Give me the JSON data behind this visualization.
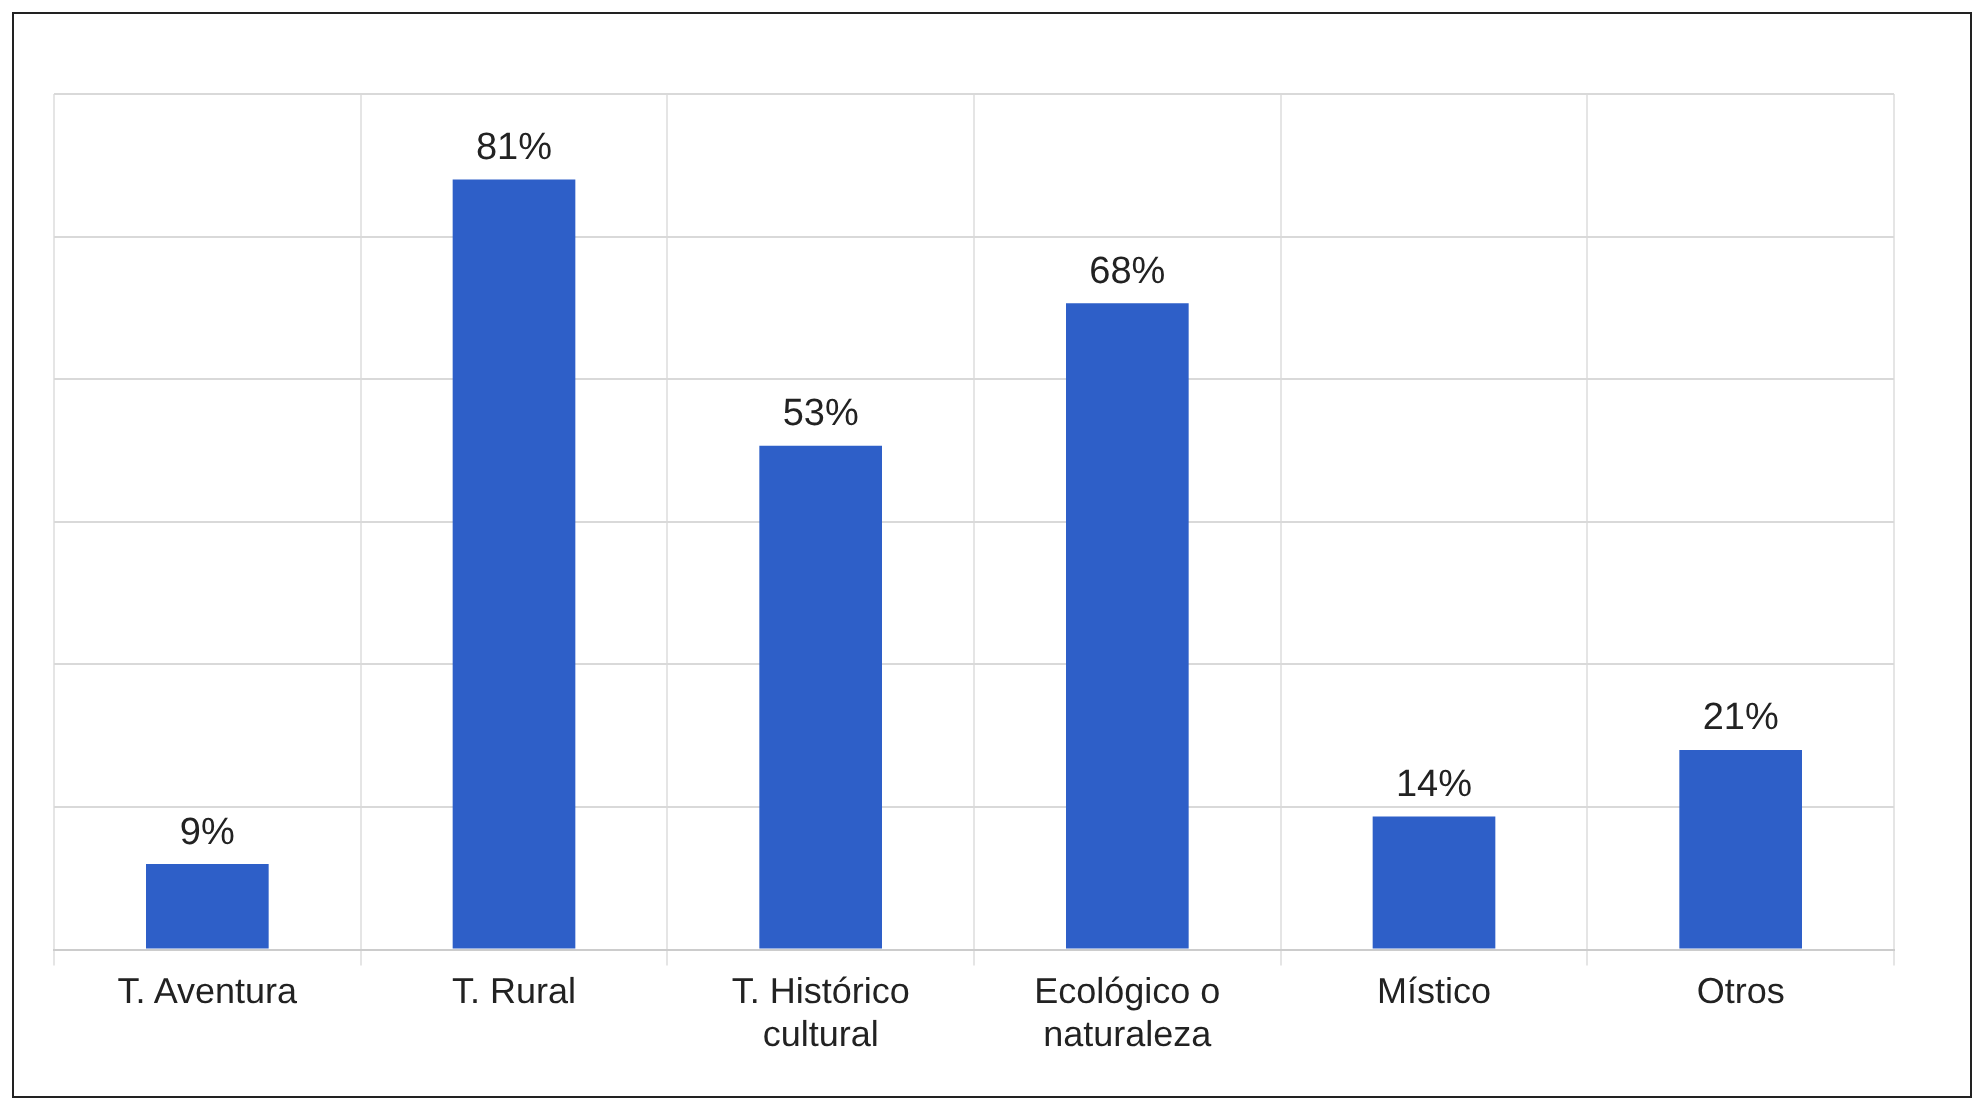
{
  "chart_data": {
    "type": "bar",
    "categories": [
      "T. Aventura",
      "T. Rural",
      "T. Histórico cultural",
      "Ecológico o naturaleza",
      "Místico",
      "Otros"
    ],
    "values": [
      9,
      81,
      53,
      68,
      14,
      21
    ],
    "value_labels": [
      "9%",
      "81%",
      "53%",
      "68%",
      "14%",
      "21%"
    ],
    "color": "#2e5fc8",
    "ylim": [
      0,
      90
    ],
    "yticks": [
      {
        "value": 0,
        "label": null
      },
      {
        "value": 15,
        "label": null
      },
      {
        "value": 30,
        "label": null
      },
      {
        "value": 45,
        "label": null
      },
      {
        "value": 60,
        "label": null
      },
      {
        "value": 75,
        "label": null
      },
      {
        "value": 90,
        "label": null
      }
    ],
    "grid": true,
    "tick_labels": "x"
  }
}
